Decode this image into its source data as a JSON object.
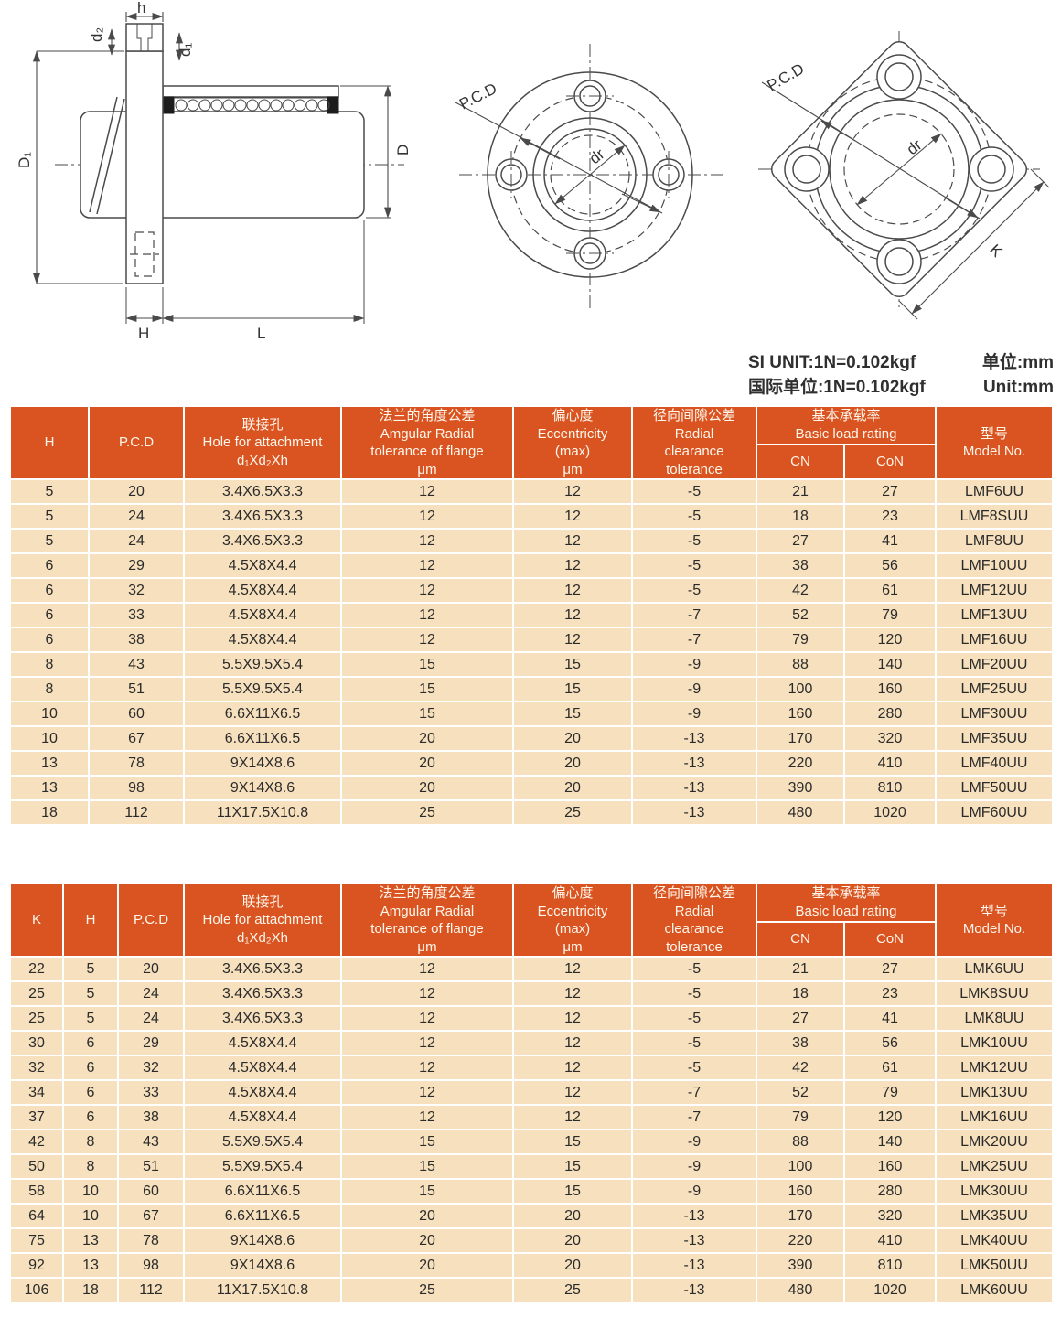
{
  "units": {
    "si_label": "SI UNIT:1N=0.102kgf",
    "si_unit": "单位:mm",
    "intl_label": "国际单位:1N=0.102kgf",
    "intl_unit": "Unit:mm"
  },
  "colors": {
    "header_bg": "#D95420",
    "row_bg": "#F6E0BD",
    "header_text": "#FFF6EC",
    "body_text": "#2B2B2B",
    "line": "#4A4A4A"
  },
  "diagrams": {
    "section": {
      "labels": {
        "h": "h",
        "d2": "d₂",
        "d1": "d₁",
        "D1": "D₁",
        "D": "D",
        "H": "H",
        "L": "L"
      }
    },
    "round_flange": {
      "labels": {
        "pcd": "P.C.D",
        "dr": "dr"
      }
    },
    "square_flange": {
      "labels": {
        "pcd": "P.C.D",
        "dr": "dr",
        "k": "K"
      }
    }
  },
  "tables": [
    {
      "id": "round-flange-series",
      "headers": [
        "H",
        "P.C.D",
        "联接孔\nHole for attachment\nd₁Xd₂Xh",
        "法兰的角度公差\nAmgular Radial\ntolerance of flange\nμm",
        "偏心度\nEccentricity\n(max)\nμm",
        "径向间隙公差\nRadial\nclearance\ntolerance",
        "型号\nModel No."
      ],
      "load_rating_group": "基本承载率\nBasic load rating",
      "subheaders": [
        "CN",
        "CoN"
      ],
      "rows": [
        [
          "5",
          "20",
          "3.4X6.5X3.3",
          "12",
          "12",
          "-5",
          "21",
          "27",
          "LMF6UU"
        ],
        [
          "5",
          "24",
          "3.4X6.5X3.3",
          "12",
          "12",
          "-5",
          "18",
          "23",
          "LMF8SUU"
        ],
        [
          "5",
          "24",
          "3.4X6.5X3.3",
          "12",
          "12",
          "-5",
          "27",
          "41",
          "LMF8UU"
        ],
        [
          "6",
          "29",
          "4.5X8X4.4",
          "12",
          "12",
          "-5",
          "38",
          "56",
          "LMF10UU"
        ],
        [
          "6",
          "32",
          "4.5X8X4.4",
          "12",
          "12",
          "-5",
          "42",
          "61",
          "LMF12UU"
        ],
        [
          "6",
          "33",
          "4.5X8X4.4",
          "12",
          "12",
          "-7",
          "52",
          "79",
          "LMF13UU"
        ],
        [
          "6",
          "38",
          "4.5X8X4.4",
          "12",
          "12",
          "-7",
          "79",
          "120",
          "LMF16UU"
        ],
        [
          "8",
          "43",
          "5.5X9.5X5.4",
          "15",
          "15",
          "-9",
          "88",
          "140",
          "LMF20UU"
        ],
        [
          "8",
          "51",
          "5.5X9.5X5.4",
          "15",
          "15",
          "-9",
          "100",
          "160",
          "LMF25UU"
        ],
        [
          "10",
          "60",
          "6.6X11X6.5",
          "15",
          "15",
          "-9",
          "160",
          "280",
          "LMF30UU"
        ],
        [
          "10",
          "67",
          "6.6X11X6.5",
          "20",
          "20",
          "-13",
          "170",
          "320",
          "LMF35UU"
        ],
        [
          "13",
          "78",
          "9X14X8.6",
          "20",
          "20",
          "-13",
          "220",
          "410",
          "LMF40UU"
        ],
        [
          "13",
          "98",
          "9X14X8.6",
          "20",
          "20",
          "-13",
          "390",
          "810",
          "LMF50UU"
        ],
        [
          "18",
          "112",
          "11X17.5X10.8",
          "25",
          "25",
          "-13",
          "480",
          "1020",
          "LMF60UU"
        ]
      ]
    },
    {
      "id": "square-flange-series",
      "headers": [
        "K",
        "H",
        "P.C.D",
        "联接孔\nHole for attachment\nd₁Xd₂Xh",
        "法兰的角度公差\nAmgular Radial\ntolerance of flange\nμm",
        "偏心度\nEccentricity\n(max)\nμm",
        "径向间隙公差\nRadial\nclearance\ntolerance",
        "型号\nModel No."
      ],
      "load_rating_group": "基本承载率\nBasic load rating",
      "subheaders": [
        "CN",
        "CoN"
      ],
      "rows": [
        [
          "22",
          "5",
          "20",
          "3.4X6.5X3.3",
          "12",
          "12",
          "-5",
          "21",
          "27",
          "LMK6UU"
        ],
        [
          "25",
          "5",
          "24",
          "3.4X6.5X3.3",
          "12",
          "12",
          "-5",
          "18",
          "23",
          "LMK8SUU"
        ],
        [
          "25",
          "5",
          "24",
          "3.4X6.5X3.3",
          "12",
          "12",
          "-5",
          "27",
          "41",
          "LMK8UU"
        ],
        [
          "30",
          "6",
          "29",
          "4.5X8X4.4",
          "12",
          "12",
          "-5",
          "38",
          "56",
          "LMK10UU"
        ],
        [
          "32",
          "6",
          "32",
          "4.5X8X4.4",
          "12",
          "12",
          "-5",
          "42",
          "61",
          "LMK12UU"
        ],
        [
          "34",
          "6",
          "33",
          "4.5X8X4.4",
          "12",
          "12",
          "-7",
          "52",
          "79",
          "LMK13UU"
        ],
        [
          "37",
          "6",
          "38",
          "4.5X8X4.4",
          "12",
          "12",
          "-7",
          "79",
          "120",
          "LMK16UU"
        ],
        [
          "42",
          "8",
          "43",
          "5.5X9.5X5.4",
          "15",
          "15",
          "-9",
          "88",
          "140",
          "LMK20UU"
        ],
        [
          "50",
          "8",
          "51",
          "5.5X9.5X5.4",
          "15",
          "15",
          "-9",
          "100",
          "160",
          "LMK25UU"
        ],
        [
          "58",
          "10",
          "60",
          "6.6X11X6.5",
          "15",
          "15",
          "-9",
          "160",
          "280",
          "LMK30UU"
        ],
        [
          "64",
          "10",
          "67",
          "6.6X11X6.5",
          "20",
          "20",
          "-13",
          "170",
          "320",
          "LMK35UU"
        ],
        [
          "75",
          "13",
          "78",
          "9X14X8.6",
          "20",
          "20",
          "-13",
          "220",
          "410",
          "LMK40UU"
        ],
        [
          "92",
          "13",
          "98",
          "9X14X8.6",
          "20",
          "20",
          "-13",
          "390",
          "810",
          "LMK50UU"
        ],
        [
          "106",
          "18",
          "112",
          "11X17.5X10.8",
          "25",
          "25",
          "-13",
          "480",
          "1020",
          "LMK60UU"
        ]
      ]
    }
  ]
}
